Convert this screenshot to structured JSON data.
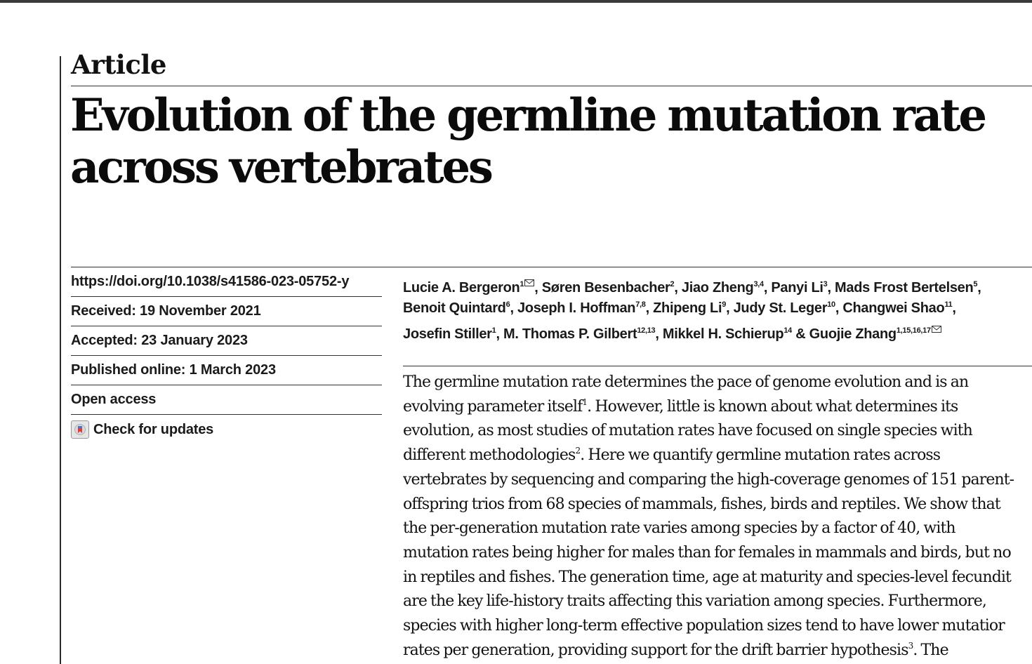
{
  "article": {
    "kicker": "Article",
    "title_lines": [
      "Evolution of the germline mutation rate",
      "across vertebrates"
    ]
  },
  "meta": {
    "doi": "https://doi.org/10.1038/s41586-023-05752-y",
    "received": "Received: 19 November 2021",
    "accepted": "Accepted: 23 January 2023",
    "published": "Published online: 1 March 2023",
    "open_access": "Open access",
    "check_updates": "Check for updates"
  },
  "authors": [
    [
      {
        "name": "Lucie A. Bergeron",
        "sup": "1",
        "mail": true,
        "sep": ", "
      },
      {
        "name": "Søren Besenbacher",
        "sup": "2",
        "sep": ", "
      },
      {
        "name": "Jiao Zheng",
        "sup": "3,4",
        "sep": ", "
      },
      {
        "name": "Panyi Li",
        "sup": "3",
        "sep": ", "
      },
      {
        "name": "Mads Frost Bertelsen",
        "sup": "5",
        "sep": ","
      }
    ],
    [
      {
        "name": "Benoit Quintard",
        "sup": "6",
        "sep": ", "
      },
      {
        "name": "Joseph I. Hoffman",
        "sup": "7,8",
        "sep": ", "
      },
      {
        "name": "Zhipeng Li",
        "sup": "9",
        "sep": ", "
      },
      {
        "name": "Judy St. Leger",
        "sup": "10",
        "sep": ", "
      },
      {
        "name": "Changwei Shao",
        "sup": "11",
        "sep": ","
      }
    ],
    [
      {
        "name": "Josefin Stiller",
        "sup": "1",
        "sep": ", "
      },
      {
        "name": "M. Thomas P. Gilbert",
        "sup": "12,13",
        "sep": ", "
      },
      {
        "name": "Mikkel H. Schierup",
        "sup": "14",
        "sep": " & "
      },
      {
        "name": "Guojie Zhang",
        "sup": "1,15,16,17",
        "mail": true,
        "sep": ""
      }
    ]
  ],
  "abstract_lines": [
    [
      {
        "t": "The germline mutation rate determines the pace of genome evolution and is an"
      }
    ],
    [
      {
        "t": "evolving parameter itself"
      },
      {
        "sup": "1"
      },
      {
        "t": ". However, little is known about what determines its"
      }
    ],
    [
      {
        "t": "evolution, as most studies of mutation rates have focused on single species with"
      }
    ],
    [
      {
        "t": "different methodologies"
      },
      {
        "sup": "2"
      },
      {
        "t": ". Here we quantify germline mutation rates across"
      }
    ],
    [
      {
        "t": "vertebrates by sequencing and comparing the high-coverage genomes of 151 parent-"
      }
    ],
    [
      {
        "t": "offspring trios from 68 species of mammals, fishes, birds and reptiles. We show that"
      }
    ],
    [
      {
        "t": "the per-generation mutation rate varies among species by a factor of 40, with"
      }
    ],
    [
      {
        "t": "mutation rates being higher for males than for females in mammals and birds, but no"
      }
    ],
    [
      {
        "t": "in reptiles and fishes. The generation time, age at maturity and species-level fecundit"
      }
    ],
    [
      {
        "t": "are the key life-history traits affecting this variation among species. Furthermore,"
      }
    ],
    [
      {
        "t": "species with higher long-term effective population sizes tend to have lower mutatior"
      }
    ],
    [
      {
        "t": "rates per generation, providing support for the drift barrier hypothesis"
      },
      {
        "sup": "3"
      },
      {
        "t": ". The"
      }
    ]
  ]
}
